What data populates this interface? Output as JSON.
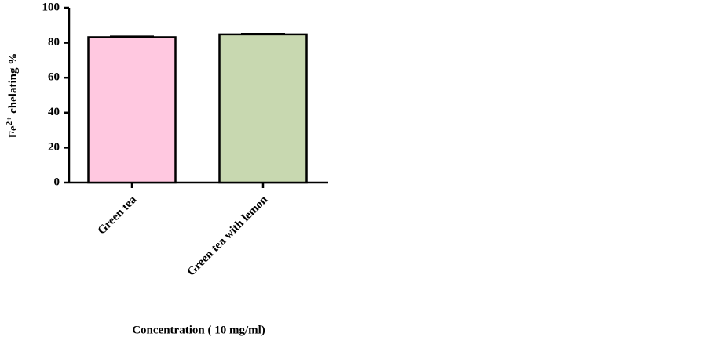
{
  "chart_data": {
    "type": "bar",
    "y_label": [
      "Fe",
      "2+",
      " chelating  %"
    ],
    "x_label": "Concentration ( 10 mg/ml)",
    "categories": [
      "Green tea",
      "Green tea with lemon"
    ],
    "values": [
      83.2,
      84.8
    ],
    "errors": [
      0.5,
      0.4
    ],
    "colors": [
      "#ffc8e0",
      "#c8d8b0"
    ],
    "ylim": [
      0,
      100
    ],
    "yticks": [
      0,
      20,
      40,
      60,
      80,
      100
    ],
    "grid": false
  }
}
